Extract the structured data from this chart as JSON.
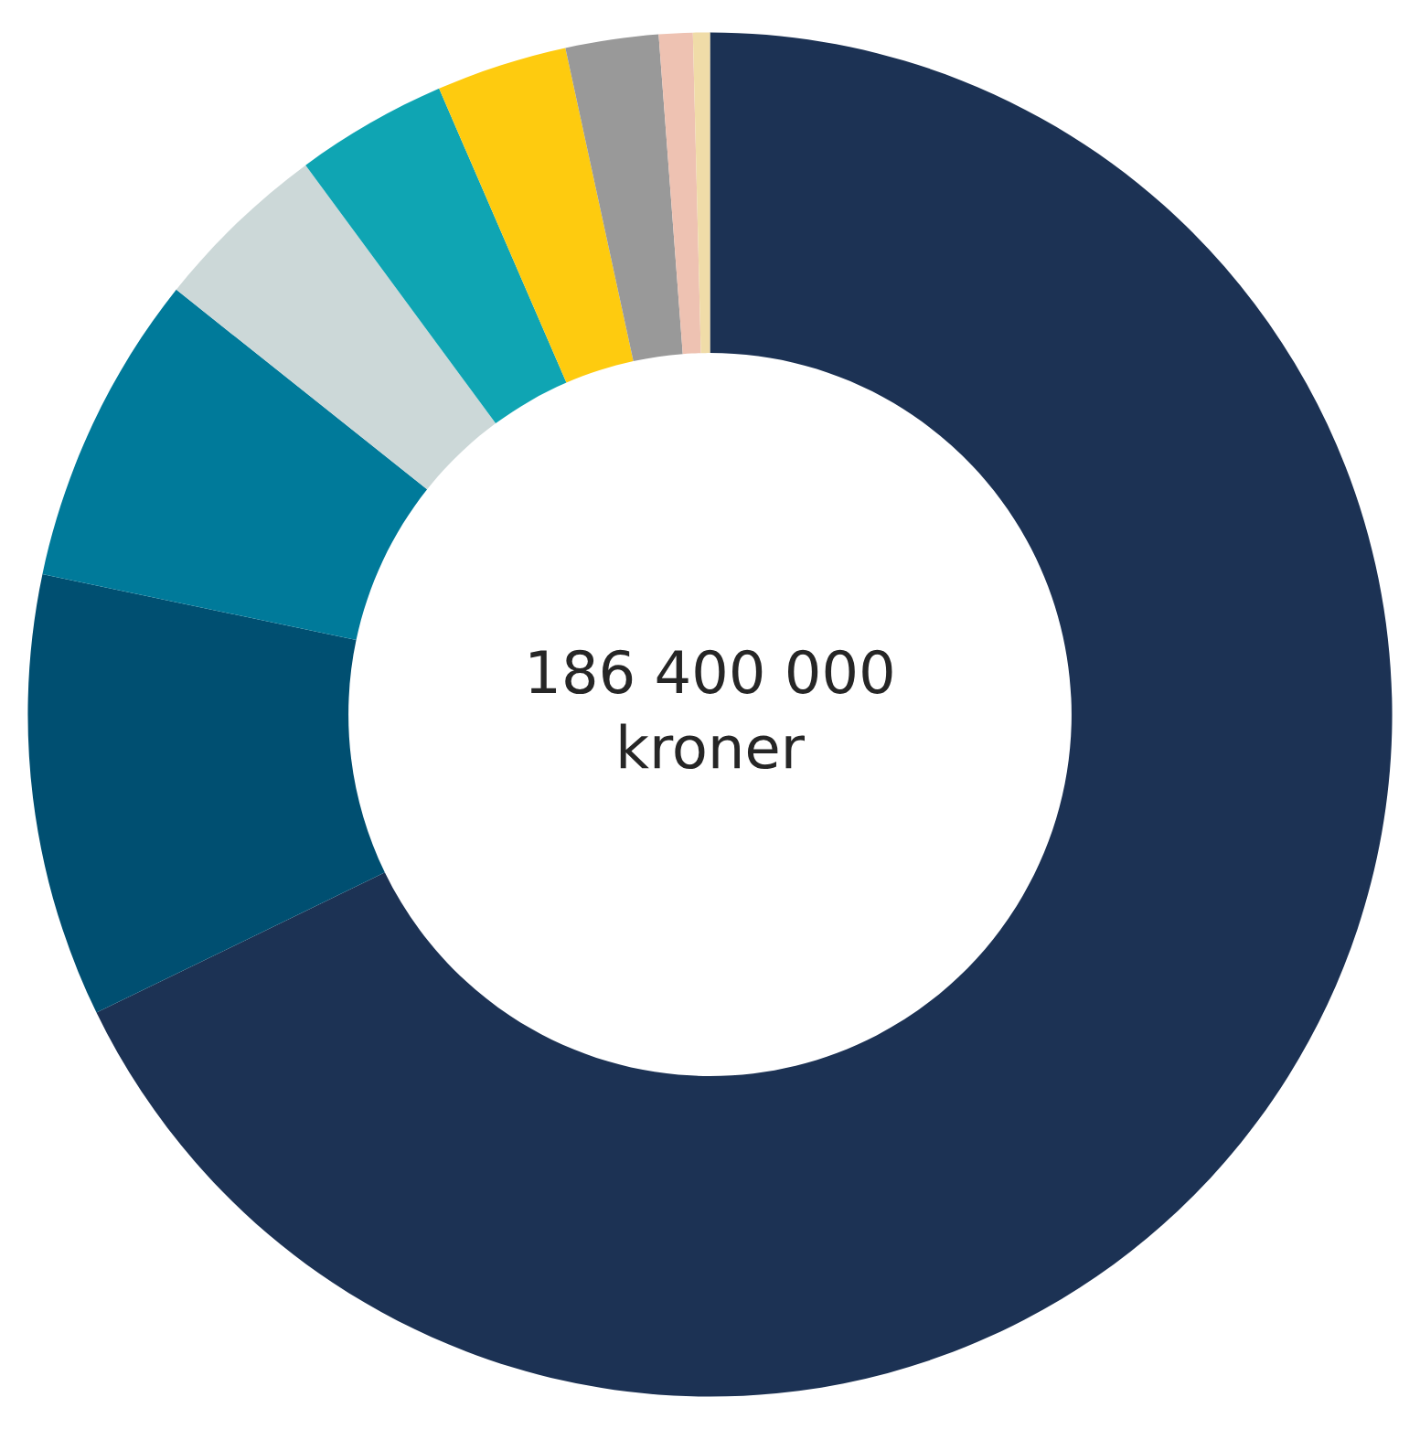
{
  "chart_data": {
    "type": "donut",
    "categories": [
      null,
      null,
      null,
      null,
      null,
      null,
      null,
      null,
      null
    ],
    "values": [
      67.8,
      10.5,
      7.4,
      4.2,
      3.6,
      3.1,
      2.2,
      0.8,
      0.4
    ],
    "colors": [
      "#1c3254",
      "#004f71",
      "#007a9a",
      "#ccd8d8",
      "#0fa5b3",
      "#fecb0f",
      "#999999",
      "#eec2b2",
      "#f0dca8"
    ],
    "annotations": [
      "186 400 000",
      "kroner"
    ]
  }
}
